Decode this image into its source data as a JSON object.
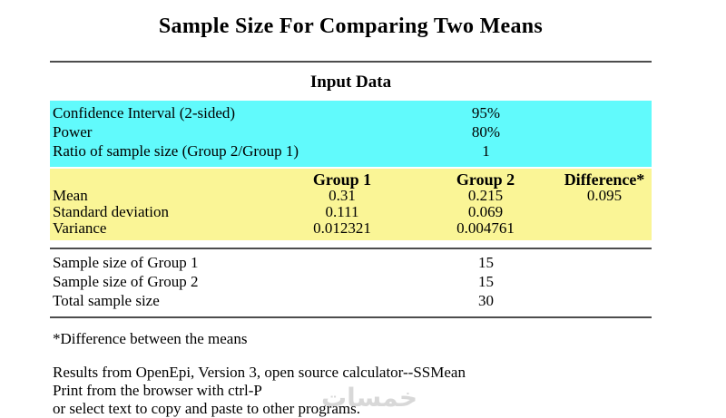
{
  "title": "Sample Size For Comparing Two Means",
  "section_heading": "Input Data",
  "colors": {
    "input_bg": "#61FAFC",
    "group_bg": "#FAF596",
    "rule": "#4d4d4d",
    "watermark": "#d8d8d8"
  },
  "input_data": {
    "rows": [
      {
        "label": "Confidence Interval (2-sided)",
        "value": "95%"
      },
      {
        "label": "Power",
        "value": "80%"
      },
      {
        "label": "Ratio of sample size (Group 2/Group 1)",
        "value": "1"
      }
    ]
  },
  "groups_table": {
    "headers": {
      "group1": "Group 1",
      "group2": "Group 2",
      "difference": "Difference*"
    },
    "rows": [
      {
        "label": "Mean",
        "group1": "0.31",
        "group2": "0.215",
        "difference": "0.095"
      },
      {
        "label": "Standard deviation",
        "group1": "0.111",
        "group2": "0.069",
        "difference": ""
      },
      {
        "label": "Variance",
        "group1": "0.012321",
        "group2": "0.004761",
        "difference": ""
      }
    ]
  },
  "results": {
    "rows": [
      {
        "label": "Sample size of Group 1",
        "value": "15"
      },
      {
        "label": "Sample size of Group 2",
        "value": "15"
      },
      {
        "label": "Total sample size",
        "value": "30"
      }
    ]
  },
  "footnote": "*Difference between the means",
  "footer": {
    "line1": "Results from OpenEpi, Version 3, open source calculator--SSMean",
    "line2": "Print from the browser with ctrl-P",
    "line3": "or select text to copy and paste to other programs."
  },
  "watermark": "خمسات"
}
